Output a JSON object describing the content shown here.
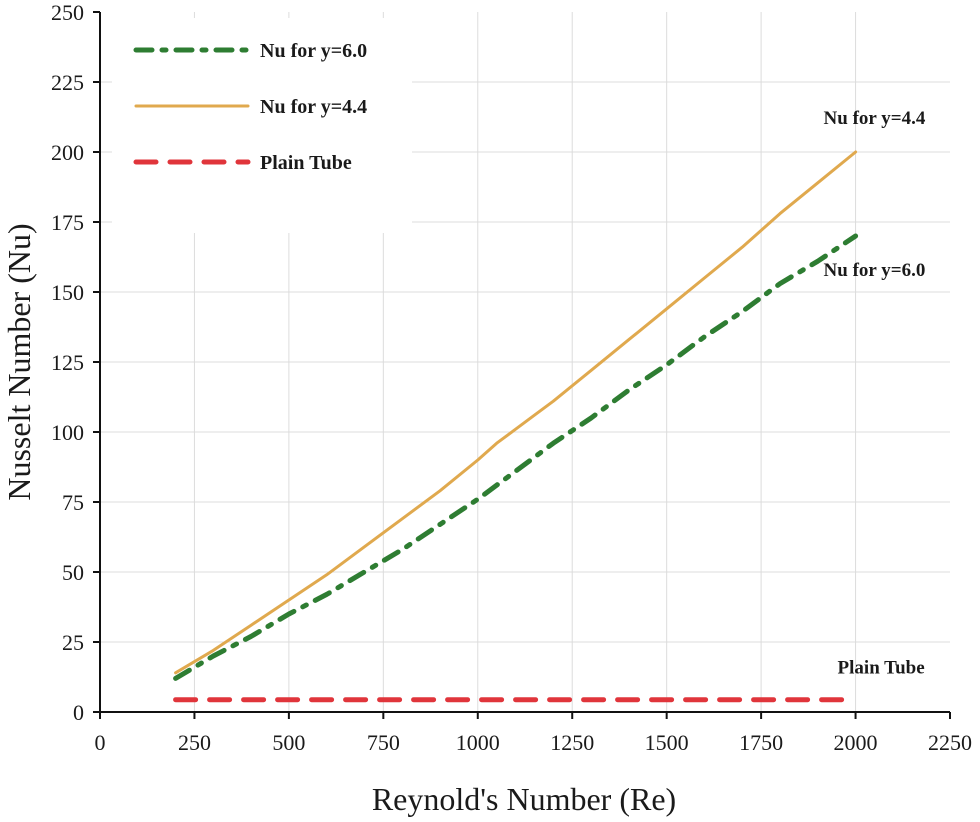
{
  "chart_data": {
    "type": "line",
    "title": "",
    "xlabel": "Reynold's Number (Re)",
    "ylabel": "Nusselt Number (Nu)",
    "xlim": [
      0,
      2250
    ],
    "ylim": [
      0,
      250
    ],
    "xticks": [
      0,
      250,
      500,
      750,
      1000,
      1250,
      1500,
      1750,
      2000,
      2250
    ],
    "yticks": [
      0,
      25,
      50,
      75,
      100,
      125,
      150,
      175,
      200,
      225,
      250
    ],
    "grid": true,
    "legend_position": "top-left",
    "series": [
      {
        "name": "Nu for y=6.0",
        "style": "dash-dot",
        "color": "#2e7d32",
        "x": [
          200,
          250,
          300,
          400,
          500,
          600,
          700,
          800,
          900,
          1000,
          1100,
          1200,
          1300,
          1400,
          1500,
          1600,
          1700,
          1800,
          1900,
          2000
        ],
        "y": [
          12,
          16,
          20,
          27,
          35,
          42,
          50,
          58,
          67,
          76,
          86,
          96,
          105,
          115,
          124,
          134,
          143,
          153,
          161,
          170
        ]
      },
      {
        "name": "Nu for y=4.4",
        "style": "solid",
        "color": "#e0a94e",
        "x": [
          200,
          300,
          400,
          500,
          600,
          700,
          800,
          900,
          1000,
          1050,
          1100,
          1150,
          1200,
          1300,
          1400,
          1500,
          1600,
          1700,
          1800,
          1900,
          2000
        ],
        "y": [
          14,
          22,
          31,
          40,
          49,
          59,
          69,
          79,
          90,
          96,
          101,
          106,
          111,
          122,
          133,
          144,
          155,
          166,
          178,
          189,
          200
        ]
      },
      {
        "name": "Plain Tube",
        "style": "dashed",
        "color": "#e0353b",
        "x": [
          200,
          2000
        ],
        "y": [
          4.4,
          4.4
        ]
      }
    ],
    "annotations": [
      {
        "text": "Nu for y=4.4",
        "series": "Nu for y=4.4"
      },
      {
        "text": "Nu for y=6.0",
        "series": "Nu for y=6.0"
      },
      {
        "text": "Plain Tube",
        "series": "Plain Tube"
      }
    ]
  }
}
